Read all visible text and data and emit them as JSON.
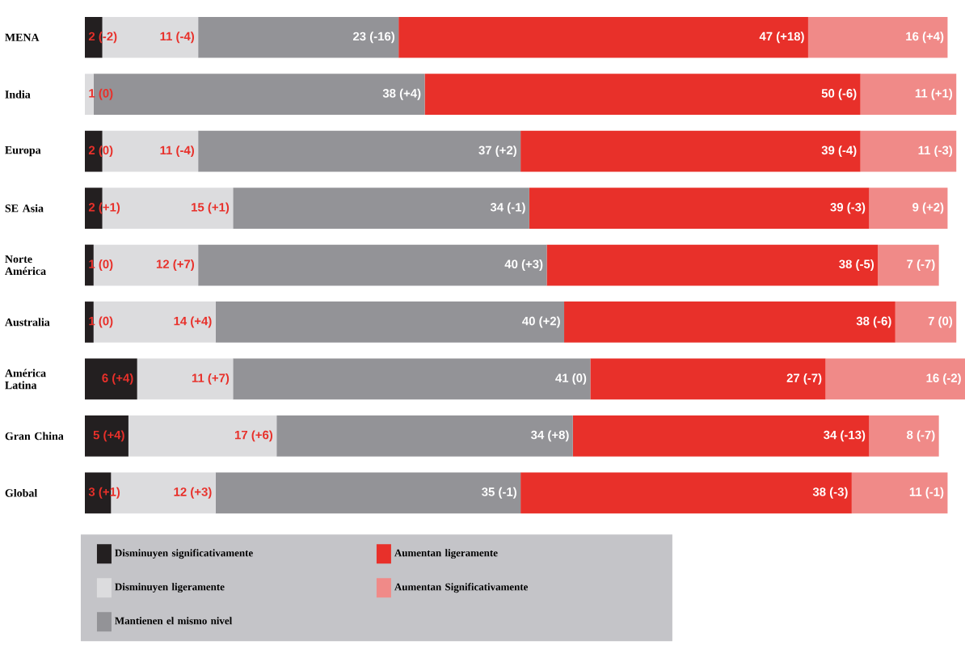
{
  "chart_data": {
    "type": "bar",
    "orientation": "horizontal",
    "stacked": true,
    "legend": "bottom",
    "categories": [
      "MENA",
      "India",
      "Europa",
      "SE Asia",
      "Norte América",
      "Australia",
      "América Latina",
      "Gran China",
      "Global"
    ],
    "series": [
      {
        "name": "Disminuyen significativamente",
        "color": "#231f20",
        "values": [
          2,
          0,
          2,
          2,
          1,
          1,
          6,
          5,
          3
        ],
        "value_labels": [
          "2 (-2)",
          null,
          "2 (0)",
          "2 (+1)",
          "1 (0)",
          "1 (0)",
          "6 (+4)",
          "5 (+4)",
          "3 (+1)"
        ]
      },
      {
        "name": "Disminuyen ligeramente",
        "color": "#dcdcde",
        "values": [
          11,
          1,
          11,
          15,
          12,
          14,
          11,
          17,
          12
        ],
        "value_labels": [
          "11 (-4)",
          "1 (0)",
          "11 (-4)",
          "15 (+1)",
          "12 (+7)",
          "14 (+4)",
          "11 (+7)",
          "17 (+6)",
          "12 (+3)"
        ]
      },
      {
        "name": "Mantienen el mismo nivel",
        "color": "#939397",
        "values": [
          23,
          38,
          37,
          34,
          40,
          40,
          41,
          34,
          35
        ],
        "value_labels": [
          "23 (-16)",
          "38 (+4)",
          "37 (+2)",
          "34 (-1)",
          "40 (+3)",
          "40 (+2)",
          "41 (0)",
          "34 (+8)",
          "35 (-1)"
        ]
      },
      {
        "name": "Aumentan ligeramente",
        "color": "#e8302a",
        "values": [
          47,
          50,
          39,
          39,
          38,
          38,
          27,
          34,
          38
        ],
        "value_labels": [
          "47 (+18)",
          "50 (-6)",
          "39 (-4)",
          "39 (-3)",
          "38 (-5)",
          "38 (-6)",
          "27 (-7)",
          "34 (-13)",
          "38 (-3)"
        ]
      },
      {
        "name": "Aumentan Significativamente",
        "color": "#f08a88",
        "values": [
          16,
          11,
          11,
          9,
          7,
          7,
          16,
          8,
          11
        ],
        "value_labels": [
          "16 (+4)",
          "11 (+1)",
          "11 (-3)",
          "9 (+2)",
          "7 (-7)",
          "7 (0)",
          "16 (-2)",
          "8 (-7)",
          "11 (-1)"
        ]
      }
    ]
  }
}
